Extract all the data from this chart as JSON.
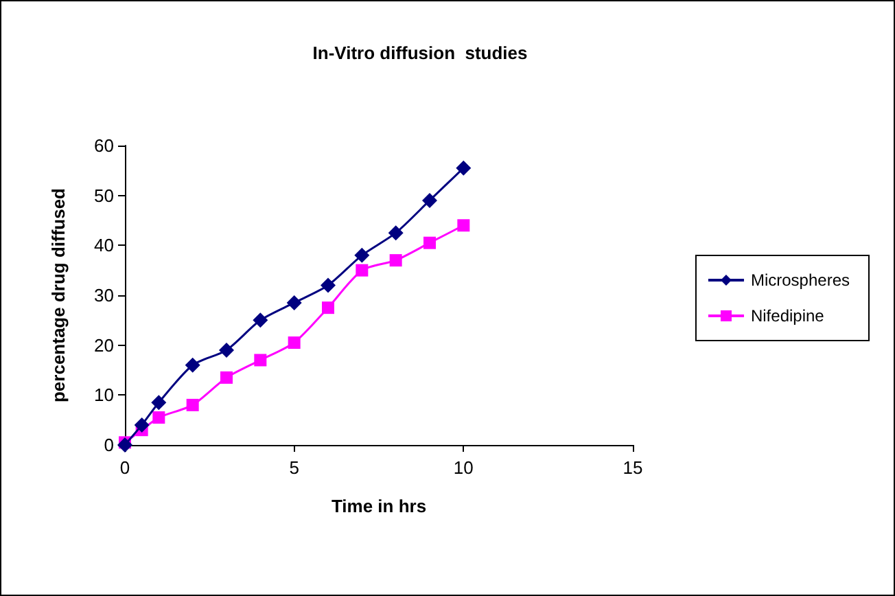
{
  "chart_data": {
    "type": "line",
    "title": "In-Vitro diffusion  studies",
    "xlabel": "Time in hrs",
    "ylabel": "percentage drug diffused",
    "x": [
      0,
      0.5,
      1,
      2,
      3,
      4,
      5,
      6,
      7,
      8,
      9,
      10
    ],
    "series": [
      {
        "name": "Microspheres",
        "color": "#000080",
        "marker": "diamond",
        "values": [
          0,
          4,
          8.5,
          16,
          19,
          25,
          28.5,
          32,
          38,
          42.5,
          49,
          55.5
        ]
      },
      {
        "name": "Nifedipine",
        "color": "#ff00ff",
        "marker": "square",
        "values": [
          0.5,
          3,
          5.5,
          8,
          13.5,
          17,
          20.5,
          27.5,
          35,
          37,
          40.5,
          44
        ]
      }
    ],
    "xlim": [
      0,
      15
    ],
    "xticks": [
      0,
      5,
      10,
      15
    ],
    "ylim": [
      0,
      60
    ],
    "yticks": [
      0,
      10,
      20,
      30,
      40,
      50,
      60
    ],
    "grid": false,
    "legend": "right",
    "line_style": "solid"
  }
}
